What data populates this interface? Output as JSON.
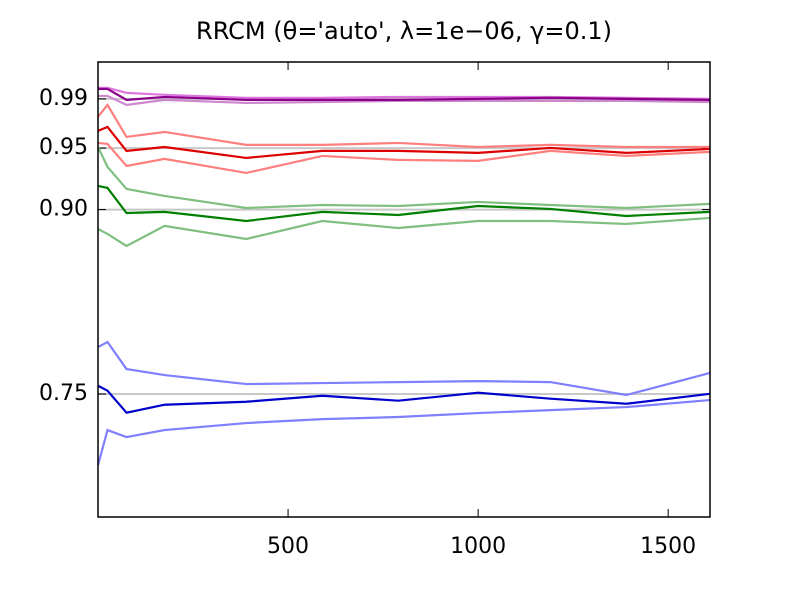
{
  "chart_data": {
    "type": "line",
    "title": "RRCM (θ='auto', λ=1e−06, γ=0.1)",
    "x": [
      0,
      25,
      75,
      175,
      390,
      590,
      790,
      1000,
      1190,
      1390,
      1610
    ],
    "xlim": [
      0,
      1610
    ],
    "xticks": [
      500,
      1000,
      1500
    ],
    "ylim": [
      0.65,
      1.02
    ],
    "yticks": [
      {
        "value": 0.75,
        "label": "0.75"
      },
      {
        "value": 0.9,
        "label": "0.90"
      },
      {
        "value": 0.95,
        "label": "0.95"
      },
      {
        "value": 0.99,
        "label": "0.99"
      }
    ],
    "grid": true,
    "series": [
      {
        "color": "#7f7fff",
        "values": [
          0.7882,
          0.7923,
          0.7703,
          0.7654,
          0.7581,
          0.7589,
          0.7597,
          0.7605,
          0.7597,
          0.7492,
          0.7671
        ]
      },
      {
        "color": "#7f7fff",
        "values": [
          0.6922,
          0.7207,
          0.715,
          0.7207,
          0.7264,
          0.7296,
          0.7313,
          0.7345,
          0.7369,
          0.7394,
          0.7451
        ]
      },
      {
        "color": "#0000cc",
        "values": [
          0.7567,
          0.7527,
          0.7348,
          0.7413,
          0.7437,
          0.7486,
          0.7446,
          0.7511,
          0.7462,
          0.7421,
          0.7502
        ]
      },
      {
        "color": "#7fbf7f",
        "values": [
          0.9509,
          0.9347,
          0.9168,
          0.9111,
          0.9013,
          0.9037,
          0.9029,
          0.9062,
          0.9037,
          0.9013,
          0.9046
        ]
      },
      {
        "color": "#7fbf7f",
        "values": [
          0.8842,
          0.8802,
          0.8704,
          0.8867,
          0.8761,
          0.8907,
          0.885,
          0.8907,
          0.8907,
          0.8883,
          0.8932
        ]
      },
      {
        "color": "#007f00",
        "values": [
          0.9192,
          0.9176,
          0.8972,
          0.8981,
          0.8907,
          0.8981,
          0.8956,
          0.9029,
          0.9005,
          0.8948,
          0.8981
        ]
      },
      {
        "color": "#ff7f7f",
        "values": [
          0.9754,
          0.9851,
          0.9591,
          0.9631,
          0.9526,
          0.9526,
          0.9542,
          0.9509,
          0.9526,
          0.9509,
          0.9509
        ]
      },
      {
        "color": "#ff7f7f",
        "values": [
          0.9542,
          0.9534,
          0.9355,
          0.9412,
          0.9298,
          0.9436,
          0.9404,
          0.9396,
          0.9477,
          0.9436,
          0.9469
        ]
      },
      {
        "color": "#dd0000",
        "values": [
          0.964,
          0.9672,
          0.9477,
          0.9509,
          0.942,
          0.9477,
          0.9477,
          0.9461,
          0.9501,
          0.9461,
          0.9493
        ]
      },
      {
        "color": "#dd77dd",
        "values": [
          0.999,
          0.999,
          0.9949,
          0.9933,
          0.9908,
          0.9908,
          0.9916,
          0.9916,
          0.9916,
          0.9908,
          0.99
        ]
      },
      {
        "color": "#cc88cc",
        "values": [
          0.9924,
          0.9924,
          0.9851,
          0.9892,
          0.9867,
          0.9875,
          0.9884,
          0.9884,
          0.9884,
          0.9884,
          0.9875
        ]
      },
      {
        "color": "#8b008b",
        "values": [
          0.9981,
          0.9981,
          0.9892,
          0.9916,
          0.9892,
          0.9892,
          0.9892,
          0.99,
          0.9908,
          0.99,
          0.9892
        ]
      }
    ]
  }
}
